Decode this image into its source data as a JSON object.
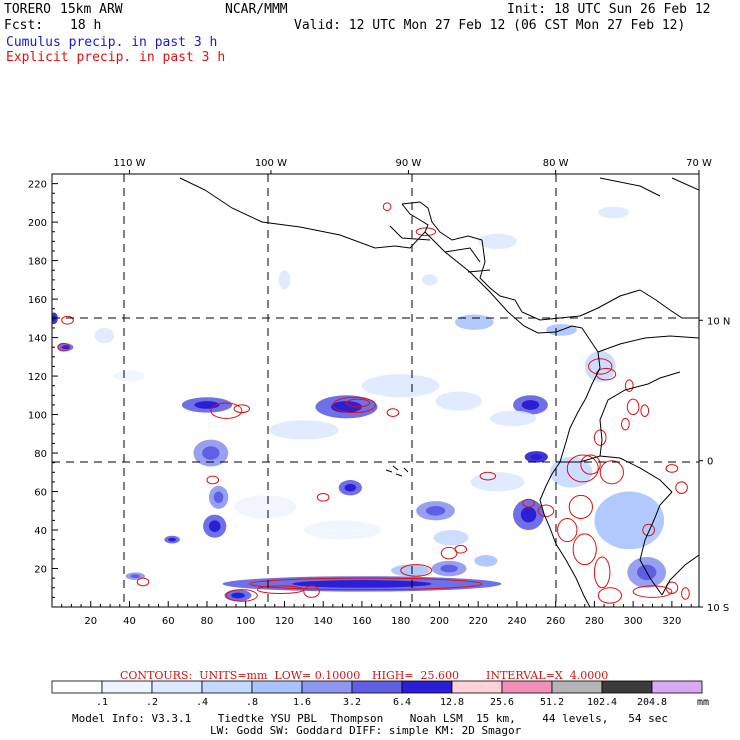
{
  "header": {
    "model_name": "TORERO",
    "resolution": "15km ARW",
    "org": "NCAR/MMM",
    "init": "Init: 18 UTC Sun 26 Feb 12",
    "fcst_label": "Fcst:",
    "fcst_value": "18 h",
    "valid": "Valid: 12 UTC Mon 27 Feb 12 (06 CST Mon 27 Feb 12)",
    "line_cumulus": "Cumulus precip. in past 3 h",
    "line_explicit": "Explicit precip. in past 3 h"
  },
  "colors": {
    "cumulus": "#1a1acc",
    "explicit": "#dd1111",
    "coast": "#000000",
    "grid": "#000000"
  },
  "contour_info": {
    "units": "CONTOURS:  UNITS=mm  LOW= 0.10000",
    "high": "HIGH=  25.600",
    "interval": "INTERVAL=X  4.0000"
  },
  "colorbar": {
    "labels": [
      ".1",
      ".2",
      ".4",
      ".8",
      "1.6",
      "3.2",
      "6.4",
      "12.8",
      "25.6",
      "51.2",
      "102.4",
      "204.8"
    ],
    "unit": "mm",
    "colors": [
      "#ffffff",
      "#eef4ff",
      "#dde9ff",
      "#c6d9ff",
      "#a9c3ff",
      "#8d97f0",
      "#5f5fe6",
      "#2a1fd4",
      "#ffd1dc",
      "#f28fb8",
      "#b4b4b4",
      "#3c3c3c",
      "#d9aaf3"
    ]
  },
  "footer": {
    "line1": "Model Info: V3.3.1    Tiedtke YSU PBL  Thompson    Noah LSM  15 km,    44 levels,   54 sec",
    "line2": "LW: Godd SW: Goddard DIFF: simple KM: 2D Smagor"
  },
  "chart_data": {
    "type": "heatmap",
    "title": "Cumulus precip. in past 3 h / Explicit precip. in past 3 h",
    "x_grid_ticks": [
      20,
      40,
      60,
      80,
      100,
      120,
      140,
      160,
      180,
      200,
      220,
      240,
      260,
      280,
      300,
      320
    ],
    "y_grid_ticks": [
      20,
      40,
      60,
      80,
      100,
      120,
      140,
      160,
      180,
      200,
      220
    ],
    "xlim": [
      0,
      334
    ],
    "ylim": [
      0,
      225
    ],
    "longitude_labels": [
      {
        "x": 40,
        "label": "110 W"
      },
      {
        "x": 113,
        "label": "100 W"
      },
      {
        "x": 184,
        "label": "90 W"
      },
      {
        "x": 260,
        "label": "80 W"
      },
      {
        "x": 334,
        "label": "70 W"
      }
    ],
    "latitude_labels": [
      {
        "y": 149,
        "label": "10 N"
      },
      {
        "y": 76,
        "label": "0"
      },
      {
        "y": 0,
        "label": "10 S"
      }
    ],
    "cumulus_areas": [
      {
        "x": 1,
        "y": 150,
        "rx": 2,
        "ry": 3,
        "level": 7
      },
      {
        "x": 7,
        "y": 135,
        "rx": 4,
        "ry": 2,
        "level": 6
      },
      {
        "x": 27,
        "y": 141,
        "rx": 5,
        "ry": 4,
        "level": 2
      },
      {
        "x": 80,
        "y": 105,
        "rx": 13,
        "ry": 4,
        "level": 6
      },
      {
        "x": 152,
        "y": 104,
        "rx": 16,
        "ry": 6,
        "level": 6
      },
      {
        "x": 82,
        "y": 80,
        "rx": 9,
        "ry": 7,
        "level": 5
      },
      {
        "x": 86,
        "y": 57,
        "rx": 5,
        "ry": 6,
        "level": 5
      },
      {
        "x": 84,
        "y": 42,
        "rx": 6,
        "ry": 6,
        "level": 6
      },
      {
        "x": 62,
        "y": 35,
        "rx": 4,
        "ry": 2,
        "level": 6
      },
      {
        "x": 154,
        "y": 62,
        "rx": 6,
        "ry": 4,
        "level": 6
      },
      {
        "x": 198,
        "y": 50,
        "rx": 10,
        "ry": 5,
        "level": 5
      },
      {
        "x": 206,
        "y": 36,
        "rx": 9,
        "ry": 4,
        "level": 3
      },
      {
        "x": 205,
        "y": 20,
        "rx": 9,
        "ry": 4,
        "level": 5
      },
      {
        "x": 224,
        "y": 24,
        "rx": 6,
        "ry": 3,
        "level": 4
      },
      {
        "x": 185,
        "y": 19,
        "rx": 10,
        "ry": 3,
        "level": 4
      },
      {
        "x": 160,
        "y": 12,
        "rx": 72,
        "ry": 4,
        "level": 6
      },
      {
        "x": 96,
        "y": 6,
        "rx": 7,
        "ry": 3,
        "level": 6
      },
      {
        "x": 43,
        "y": 16,
        "rx": 5,
        "ry": 2,
        "level": 5
      },
      {
        "x": 247,
        "y": 105,
        "rx": 9,
        "ry": 5,
        "level": 6
      },
      {
        "x": 250,
        "y": 78,
        "rx": 6,
        "ry": 3,
        "level": 7
      },
      {
        "x": 246,
        "y": 48,
        "rx": 8,
        "ry": 8,
        "level": 6
      },
      {
        "x": 268,
        "y": 70,
        "rx": 11,
        "ry": 8,
        "level": 3
      },
      {
        "x": 298,
        "y": 45,
        "rx": 18,
        "ry": 15,
        "level": 4
      },
      {
        "x": 307,
        "y": 18,
        "rx": 10,
        "ry": 8,
        "level": 5
      },
      {
        "x": 283,
        "y": 125,
        "rx": 8,
        "ry": 8,
        "level": 3
      },
      {
        "x": 263,
        "y": 144,
        "rx": 8,
        "ry": 3,
        "level": 4
      },
      {
        "x": 238,
        "y": 98,
        "rx": 12,
        "ry": 4,
        "level": 2
      },
      {
        "x": 210,
        "y": 107,
        "rx": 12,
        "ry": 5,
        "level": 2
      },
      {
        "x": 180,
        "y": 115,
        "rx": 20,
        "ry": 6,
        "level": 2
      },
      {
        "x": 130,
        "y": 92,
        "rx": 18,
        "ry": 5,
        "level": 2
      },
      {
        "x": 110,
        "y": 52,
        "rx": 16,
        "ry": 6,
        "level": 1
      },
      {
        "x": 150,
        "y": 40,
        "rx": 20,
        "ry": 5,
        "level": 1
      },
      {
        "x": 230,
        "y": 65,
        "rx": 14,
        "ry": 5,
        "level": 2
      },
      {
        "x": 40,
        "y": 120,
        "rx": 8,
        "ry": 3,
        "level": 1
      },
      {
        "x": 230,
        "y": 190,
        "rx": 10,
        "ry": 4,
        "level": 2
      },
      {
        "x": 290,
        "y": 205,
        "rx": 8,
        "ry": 3,
        "level": 2
      },
      {
        "x": 120,
        "y": 170,
        "rx": 3,
        "ry": 5,
        "level": 2
      },
      {
        "x": 195,
        "y": 170,
        "rx": 4,
        "ry": 3,
        "level": 2
      },
      {
        "x": 218,
        "y": 148,
        "rx": 10,
        "ry": 4,
        "level": 4
      }
    ],
    "explicit_contours": [
      {
        "x": 8,
        "y": 149,
        "rx": 3,
        "ry": 2
      },
      {
        "x": 6,
        "y": 135,
        "rx": 3,
        "ry": 2
      },
      {
        "x": 90,
        "y": 102,
        "rx": 8,
        "ry": 4
      },
      {
        "x": 98,
        "y": 103,
        "rx": 4,
        "ry": 2
      },
      {
        "x": 156,
        "y": 105,
        "rx": 11,
        "ry": 4
      },
      {
        "x": 158,
        "y": 106,
        "rx": 6,
        "ry": 2
      },
      {
        "x": 176,
        "y": 101,
        "rx": 3,
        "ry": 2
      },
      {
        "x": 193,
        "y": 195,
        "rx": 5,
        "ry": 2
      },
      {
        "x": 173,
        "y": 208,
        "rx": 2,
        "ry": 2
      },
      {
        "x": 83,
        "y": 66,
        "rx": 3,
        "ry": 2
      },
      {
        "x": 140,
        "y": 57,
        "rx": 3,
        "ry": 2
      },
      {
        "x": 225,
        "y": 68,
        "rx": 4,
        "ry": 2
      },
      {
        "x": 205,
        "y": 28,
        "rx": 4,
        "ry": 3
      },
      {
        "x": 211,
        "y": 30,
        "rx": 3,
        "ry": 2
      },
      {
        "x": 162,
        "y": 12,
        "rx": 60,
        "ry": 3
      },
      {
        "x": 118,
        "y": 9,
        "rx": 12,
        "ry": 2
      },
      {
        "x": 98,
        "y": 6,
        "rx": 8,
        "ry": 3
      },
      {
        "x": 134,
        "y": 8,
        "rx": 4,
        "ry": 3
      },
      {
        "x": 188,
        "y": 19,
        "rx": 8,
        "ry": 3
      },
      {
        "x": 47,
        "y": 13,
        "rx": 3,
        "ry": 2
      },
      {
        "x": 283,
        "y": 125,
        "rx": 6,
        "ry": 4
      },
      {
        "x": 286,
        "y": 121,
        "rx": 5,
        "ry": 3
      },
      {
        "x": 300,
        "y": 104,
        "rx": 3,
        "ry": 4
      },
      {
        "x": 306,
        "y": 102,
        "rx": 2,
        "ry": 3
      },
      {
        "x": 298,
        "y": 115,
        "rx": 2,
        "ry": 3
      },
      {
        "x": 296,
        "y": 95,
        "rx": 2,
        "ry": 3
      },
      {
        "x": 274,
        "y": 72,
        "rx": 8,
        "ry": 7
      },
      {
        "x": 278,
        "y": 74,
        "rx": 5,
        "ry": 5
      },
      {
        "x": 283,
        "y": 88,
        "rx": 3,
        "ry": 4
      },
      {
        "x": 289,
        "y": 70,
        "rx": 6,
        "ry": 6
      },
      {
        "x": 273,
        "y": 52,
        "rx": 6,
        "ry": 6
      },
      {
        "x": 266,
        "y": 40,
        "rx": 5,
        "ry": 6
      },
      {
        "x": 275,
        "y": 30,
        "rx": 6,
        "ry": 8
      },
      {
        "x": 284,
        "y": 18,
        "rx": 4,
        "ry": 8
      },
      {
        "x": 288,
        "y": 6,
        "rx": 6,
        "ry": 4
      },
      {
        "x": 310,
        "y": 8,
        "rx": 10,
        "ry": 3
      },
      {
        "x": 308,
        "y": 40,
        "rx": 3,
        "ry": 3
      },
      {
        "x": 320,
        "y": 72,
        "rx": 3,
        "ry": 2
      },
      {
        "x": 325,
        "y": 62,
        "rx": 3,
        "ry": 3
      },
      {
        "x": 255,
        "y": 50,
        "rx": 4,
        "ry": 3
      },
      {
        "x": 246,
        "y": 54,
        "rx": 3,
        "ry": 2
      },
      {
        "x": 320,
        "y": 10,
        "rx": 3,
        "ry": 3
      },
      {
        "x": 327,
        "y": 7,
        "rx": 2,
        "ry": 3
      }
    ]
  }
}
